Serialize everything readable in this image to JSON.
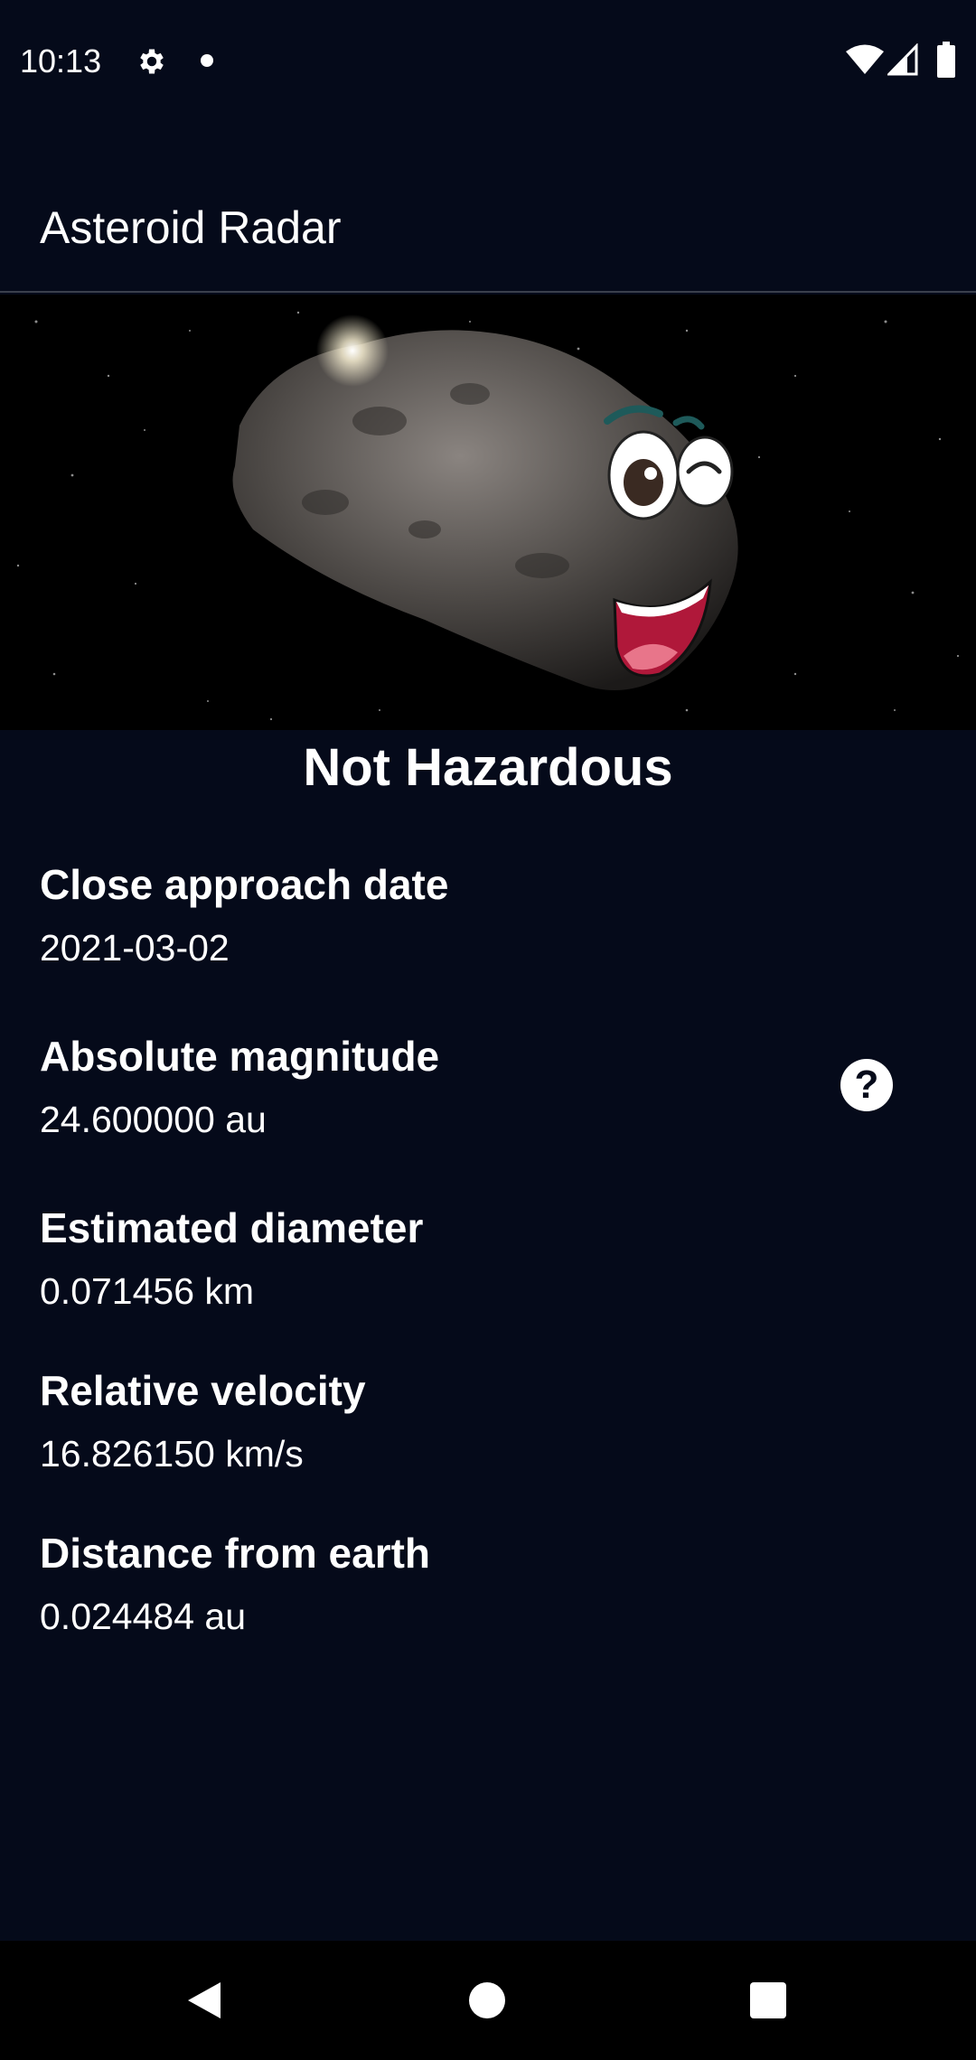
{
  "status_bar": {
    "time": "10:13",
    "icons": [
      "gear-icon",
      "notification-dot-icon",
      "wifi-icon",
      "signal-icon",
      "battery-icon"
    ]
  },
  "app_bar": {
    "title": "Asteroid Radar"
  },
  "hero": {
    "icon": "asteroid-cartoon-image"
  },
  "hazard_status": "Not Hazardous",
  "details": {
    "close_approach_date": {
      "title": "Close approach date",
      "value": "2021-03-02"
    },
    "absolute_magnitude": {
      "title": "Absolute magnitude",
      "value": "24.600000 au"
    },
    "estimated_diameter": {
      "title": "Estimated diameter",
      "value": "0.071456 km"
    },
    "relative_velocity": {
      "title": "Relative velocity",
      "value": "16.826150 km/s"
    },
    "distance_from_earth": {
      "title": "Distance from earth",
      "value": "0.024484 au"
    }
  },
  "help_button": {
    "label": "?",
    "icon": "help-icon"
  },
  "nav_bar": {
    "icons": [
      "back-icon",
      "home-icon",
      "recents-icon"
    ]
  },
  "colors": {
    "background": "#050a1a",
    "text": "#ffffff",
    "divider": "#3a3f4c"
  }
}
